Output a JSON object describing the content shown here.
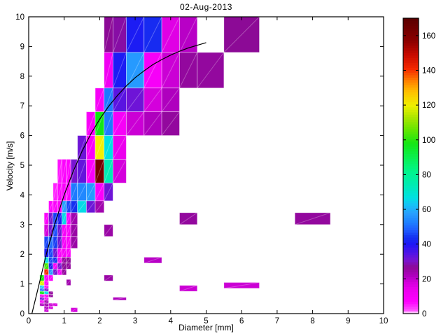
{
  "chart_data": {
    "type": "heatmap",
    "title": "02-Aug-2013",
    "xlabel": "Diameter [mm]",
    "ylabel": "Velocity [m/s]",
    "xlim": [
      0,
      10
    ],
    "ylim": [
      0,
      10
    ],
    "xticks": [
      0,
      1,
      2,
      3,
      4,
      5,
      6,
      7,
      8,
      9,
      10
    ],
    "yticks": [
      0,
      1,
      2,
      3,
      4,
      5,
      6,
      7,
      8,
      9,
      10
    ],
    "grid": false,
    "colorbar": {
      "min": 0,
      "max": 170,
      "ticks": [
        0,
        20,
        40,
        60,
        80,
        100,
        120,
        140,
        160
      ],
      "position": "right"
    },
    "colormap_stops": [
      [
        0,
        "#ffffff"
      ],
      [
        2,
        "#ff55ff"
      ],
      [
        7,
        "#ff00ff"
      ],
      [
        14,
        "#ec00ee"
      ],
      [
        18,
        "#d400dc"
      ],
      [
        22,
        "#af00be"
      ],
      [
        27,
        "#8c0a96"
      ],
      [
        31,
        "#7814d2"
      ],
      [
        35,
        "#5014e6"
      ],
      [
        40,
        "#1e14f5"
      ],
      [
        44,
        "#1432f0"
      ],
      [
        48,
        "#1e5aff"
      ],
      [
        53,
        "#1e82ff"
      ],
      [
        58,
        "#28a0ff"
      ],
      [
        63,
        "#14c3f5"
      ],
      [
        67,
        "#00e1e1"
      ],
      [
        74,
        "#00ebb4"
      ],
      [
        82,
        "#00f58c"
      ],
      [
        90,
        "#0af050"
      ],
      [
        98,
        "#14e614"
      ],
      [
        106,
        "#64e600"
      ],
      [
        113,
        "#aae600"
      ],
      [
        120,
        "#f0f000"
      ],
      [
        128,
        "#ffbe00"
      ],
      [
        134,
        "#ff8200"
      ],
      [
        141,
        "#f52800"
      ],
      [
        149,
        "#c80a00"
      ],
      [
        157,
        "#8c0000"
      ],
      [
        170,
        "#5a0000"
      ]
    ],
    "cells_format": [
      "d_min_mm",
      "d_max_mm",
      "v_min_ms",
      "v_max_ms",
      "count"
    ],
    "cells": [
      [
        2.125,
        2.375,
        8.8,
        10,
        27
      ],
      [
        2.375,
        2.75,
        8.8,
        10,
        28
      ],
      [
        2.75,
        3.25,
        8.8,
        10,
        41
      ],
      [
        3.25,
        3.75,
        8.8,
        10,
        43
      ],
      [
        3.75,
        4.25,
        8.8,
        10,
        16
      ],
      [
        4.25,
        4.75,
        8.8,
        10,
        21
      ],
      [
        5.5,
        6.5,
        8.8,
        10,
        27
      ],
      [
        2.125,
        2.375,
        7.6,
        8.8,
        12
      ],
      [
        2.375,
        2.75,
        7.6,
        8.8,
        41
      ],
      [
        2.75,
        3.25,
        7.6,
        8.8,
        57
      ],
      [
        3.25,
        3.75,
        7.6,
        8.8,
        10
      ],
      [
        3.75,
        4.25,
        7.6,
        8.8,
        19
      ],
      [
        4.25,
        4.75,
        7.6,
        8.8,
        26
      ],
      [
        4.75,
        5.5,
        7.6,
        8.8,
        26
      ],
      [
        1.875,
        2.125,
        6.8,
        7.6,
        10
      ],
      [
        2.125,
        2.375,
        6.8,
        7.6,
        52
      ],
      [
        2.375,
        2.75,
        6.8,
        7.6,
        34
      ],
      [
        2.75,
        3.25,
        6.8,
        7.6,
        32
      ],
      [
        3.25,
        3.75,
        6.8,
        7.6,
        18
      ],
      [
        3.75,
        4.25,
        6.8,
        7.6,
        22
      ],
      [
        1.625,
        1.875,
        6.0,
        6.8,
        9
      ],
      [
        1.875,
        2.125,
        6.0,
        6.8,
        98
      ],
      [
        2.125,
        2.375,
        6.0,
        6.8,
        52
      ],
      [
        2.375,
        2.75,
        6.0,
        6.8,
        10
      ],
      [
        2.75,
        3.25,
        6.0,
        6.8,
        19
      ],
      [
        3.25,
        3.75,
        6.0,
        6.8,
        22
      ],
      [
        3.75,
        4.25,
        6.0,
        6.8,
        26
      ],
      [
        1.375,
        1.625,
        5.2,
        6.0,
        32
      ],
      [
        1.625,
        1.875,
        5.2,
        6.0,
        9
      ],
      [
        1.875,
        2.125,
        5.2,
        6.0,
        120
      ],
      [
        2.125,
        2.375,
        5.2,
        6.0,
        67
      ],
      [
        2.375,
        2.75,
        5.2,
        6.0,
        14
      ],
      [
        0.812,
        0.937,
        4.4,
        5.2,
        6
      ],
      [
        0.937,
        1.062,
        4.4,
        5.2,
        8
      ],
      [
        1.062,
        1.187,
        4.4,
        5.2,
        8
      ],
      [
        1.187,
        1.375,
        4.4,
        5.2,
        31
      ],
      [
        1.375,
        1.625,
        4.4,
        5.2,
        33
      ],
      [
        1.625,
        1.875,
        4.4,
        5.2,
        9
      ],
      [
        1.875,
        2.125,
        4.4,
        5.2,
        163
      ],
      [
        2.125,
        2.375,
        4.4,
        5.2,
        74
      ],
      [
        2.375,
        2.75,
        4.4,
        5.2,
        18
      ],
      [
        0.687,
        0.812,
        3.8,
        4.4,
        5
      ],
      [
        0.812,
        0.937,
        3.8,
        4.4,
        7
      ],
      [
        0.937,
        1.062,
        3.8,
        4.4,
        8
      ],
      [
        1.062,
        1.187,
        3.8,
        4.4,
        8
      ],
      [
        1.187,
        1.375,
        3.8,
        4.4,
        52
      ],
      [
        1.375,
        1.625,
        3.8,
        4.4,
        54
      ],
      [
        1.625,
        1.875,
        3.8,
        4.4,
        57
      ],
      [
        1.875,
        2.125,
        3.8,
        4.4,
        9
      ],
      [
        2.125,
        2.375,
        3.8,
        4.4,
        32
      ],
      [
        0.562,
        0.687,
        3.4,
        3.8,
        7
      ],
      [
        0.687,
        0.812,
        3.4,
        3.8,
        9
      ],
      [
        0.812,
        0.937,
        3.4,
        3.8,
        9
      ],
      [
        0.937,
        1.062,
        3.4,
        3.8,
        58
      ],
      [
        1.062,
        1.187,
        3.4,
        3.8,
        46
      ],
      [
        1.187,
        1.375,
        3.4,
        3.8,
        44
      ],
      [
        1.375,
        1.625,
        3.4,
        3.8,
        66
      ],
      [
        1.625,
        1.875,
        3.4,
        3.8,
        32
      ],
      [
        1.875,
        2.125,
        3.4,
        3.8,
        24
      ],
      [
        0.437,
        0.562,
        3.0,
        3.4,
        9
      ],
      [
        0.562,
        0.687,
        3.0,
        3.4,
        31
      ],
      [
        0.687,
        0.812,
        3.0,
        3.4,
        45
      ],
      [
        0.812,
        0.937,
        3.0,
        3.4,
        41
      ],
      [
        0.937,
        1.062,
        3.0,
        3.4,
        66
      ],
      [
        1.062,
        1.187,
        3.0,
        3.4,
        10
      ],
      [
        1.187,
        1.375,
        3.0,
        3.4,
        24
      ],
      [
        4.25,
        4.75,
        3.0,
        3.4,
        26
      ],
      [
        7.5,
        8.5,
        3.0,
        3.4,
        26
      ],
      [
        0.437,
        0.562,
        2.6,
        3.0,
        18
      ],
      [
        0.562,
        0.687,
        2.6,
        3.0,
        31
      ],
      [
        0.687,
        0.812,
        2.6,
        3.0,
        47
      ],
      [
        0.812,
        0.937,
        2.6,
        3.0,
        32
      ],
      [
        0.937,
        1.062,
        2.6,
        3.0,
        10
      ],
      [
        1.062,
        1.187,
        2.6,
        3.0,
        9
      ],
      [
        1.187,
        1.375,
        2.6,
        3.0,
        25
      ],
      [
        2.125,
        2.375,
        2.6,
        3.0,
        25
      ],
      [
        0.437,
        0.562,
        2.2,
        2.6,
        46
      ],
      [
        0.562,
        0.687,
        2.2,
        2.6,
        50
      ],
      [
        0.687,
        0.812,
        2.2,
        2.6,
        45
      ],
      [
        0.812,
        0.937,
        2.2,
        2.6,
        32
      ],
      [
        0.937,
        1.062,
        2.2,
        2.6,
        10
      ],
      [
        1.062,
        1.187,
        2.2,
        2.6,
        9
      ],
      [
        1.187,
        1.375,
        2.2,
        2.6,
        25
      ],
      [
        0.437,
        0.562,
        1.9,
        2.2,
        41
      ],
      [
        0.562,
        0.687,
        1.9,
        2.2,
        46
      ],
      [
        0.687,
        0.812,
        1.9,
        2.2,
        32
      ],
      [
        0.812,
        0.937,
        1.9,
        2.2,
        9
      ],
      [
        0.937,
        1.062,
        1.9,
        2.2,
        10
      ],
      [
        1.062,
        1.187,
        1.9,
        2.2,
        8
      ],
      [
        0.437,
        0.562,
        1.7,
        1.9,
        67
      ],
      [
        0.562,
        0.687,
        1.7,
        1.9,
        46
      ],
      [
        0.687,
        0.812,
        1.7,
        1.9,
        44
      ],
      [
        0.812,
        0.937,
        1.7,
        1.9,
        10
      ],
      [
        0.937,
        1.062,
        1.7,
        1.9,
        26
      ],
      [
        1.062,
        1.187,
        1.7,
        1.9,
        27
      ],
      [
        3.25,
        3.75,
        1.7,
        1.9,
        21
      ],
      [
        0.437,
        0.562,
        1.5,
        1.7,
        103
      ],
      [
        0.562,
        0.687,
        1.5,
        1.7,
        41
      ],
      [
        0.687,
        0.812,
        1.5,
        1.7,
        10
      ],
      [
        0.812,
        0.937,
        1.5,
        1.7,
        31
      ],
      [
        0.937,
        1.062,
        1.5,
        1.7,
        27
      ],
      [
        1.062,
        1.187,
        1.5,
        1.7,
        26
      ],
      [
        0.437,
        0.562,
        1.3,
        1.5,
        141
      ],
      [
        0.562,
        0.687,
        1.3,
        1.5,
        57
      ],
      [
        0.687,
        0.812,
        1.3,
        1.5,
        31
      ],
      [
        0.812,
        0.937,
        1.3,
        1.5,
        10
      ],
      [
        0.937,
        1.062,
        1.3,
        1.5,
        26
      ],
      [
        0.312,
        0.437,
        1.1,
        1.3,
        98
      ],
      [
        0.437,
        0.562,
        1.1,
        1.3,
        10
      ],
      [
        0.562,
        0.687,
        1.1,
        1.3,
        8
      ],
      [
        2.125,
        2.375,
        1.1,
        1.3,
        25
      ],
      [
        1.062,
        1.187,
        0.95,
        1.15,
        24
      ],
      [
        0.312,
        0.437,
        0.95,
        1.1,
        118
      ],
      [
        0.437,
        0.562,
        0.95,
        1.1,
        9
      ],
      [
        0.312,
        0.437,
        0.85,
        0.95,
        64
      ],
      [
        0.437,
        0.562,
        0.85,
        0.95,
        10
      ],
      [
        0.312,
        0.437,
        0.75,
        0.85,
        52
      ],
      [
        0.437,
        0.562,
        0.75,
        0.85,
        31
      ],
      [
        0.312,
        0.437,
        0.65,
        0.75,
        98
      ],
      [
        0.437,
        0.562,
        0.65,
        0.75,
        66
      ],
      [
        0.562,
        0.687,
        0.65,
        0.75,
        26
      ],
      [
        0.312,
        0.437,
        0.55,
        0.65,
        10
      ],
      [
        0.437,
        0.562,
        0.55,
        0.65,
        9
      ],
      [
        0.562,
        0.687,
        0.55,
        0.65,
        26
      ],
      [
        0.312,
        0.437,
        0.45,
        0.55,
        31
      ],
      [
        0.437,
        0.562,
        0.45,
        0.55,
        10
      ],
      [
        2.375,
        2.75,
        0.45,
        0.55,
        22
      ],
      [
        0.312,
        0.437,
        0.35,
        0.45,
        9
      ],
      [
        0.437,
        0.562,
        0.35,
        0.45,
        24
      ],
      [
        0.312,
        0.437,
        0.25,
        0.35,
        22
      ],
      [
        0.437,
        0.562,
        0.25,
        0.35,
        24
      ],
      [
        0.562,
        0.687,
        0.25,
        0.35,
        19
      ],
      [
        0.687,
        0.812,
        0.25,
        0.35,
        17
      ],
      [
        0.437,
        0.562,
        0.15,
        0.25,
        22
      ],
      [
        0.562,
        0.687,
        0.15,
        0.25,
        18
      ],
      [
        0.437,
        0.562,
        0.05,
        0.15,
        19
      ],
      [
        1.187,
        1.375,
        0.05,
        0.2,
        18
      ],
      [
        4.25,
        4.75,
        0.75,
        0.95,
        19
      ],
      [
        5.5,
        6.5,
        0.85,
        1.05,
        19
      ]
    ],
    "fit_curve": {
      "name": "terminal-velocity-curve",
      "color": "#000000",
      "points": [
        [
          0.09,
          0.0
        ],
        [
          0.25,
          0.78
        ],
        [
          0.5,
          2.02
        ],
        [
          0.75,
          3.08
        ],
        [
          1.0,
          4.0
        ],
        [
          1.25,
          4.78
        ],
        [
          1.5,
          5.46
        ],
        [
          1.75,
          6.05
        ],
        [
          2.0,
          6.55
        ],
        [
          2.25,
          6.98
        ],
        [
          2.5,
          7.35
        ],
        [
          2.75,
          7.67
        ],
        [
          3.0,
          7.95
        ],
        [
          3.25,
          8.18
        ],
        [
          3.5,
          8.39
        ],
        [
          3.75,
          8.56
        ],
        [
          4.0,
          8.71
        ],
        [
          4.25,
          8.84
        ],
        [
          4.5,
          8.95
        ],
        [
          4.75,
          9.04
        ],
        [
          5.0,
          9.13
        ]
      ]
    }
  }
}
